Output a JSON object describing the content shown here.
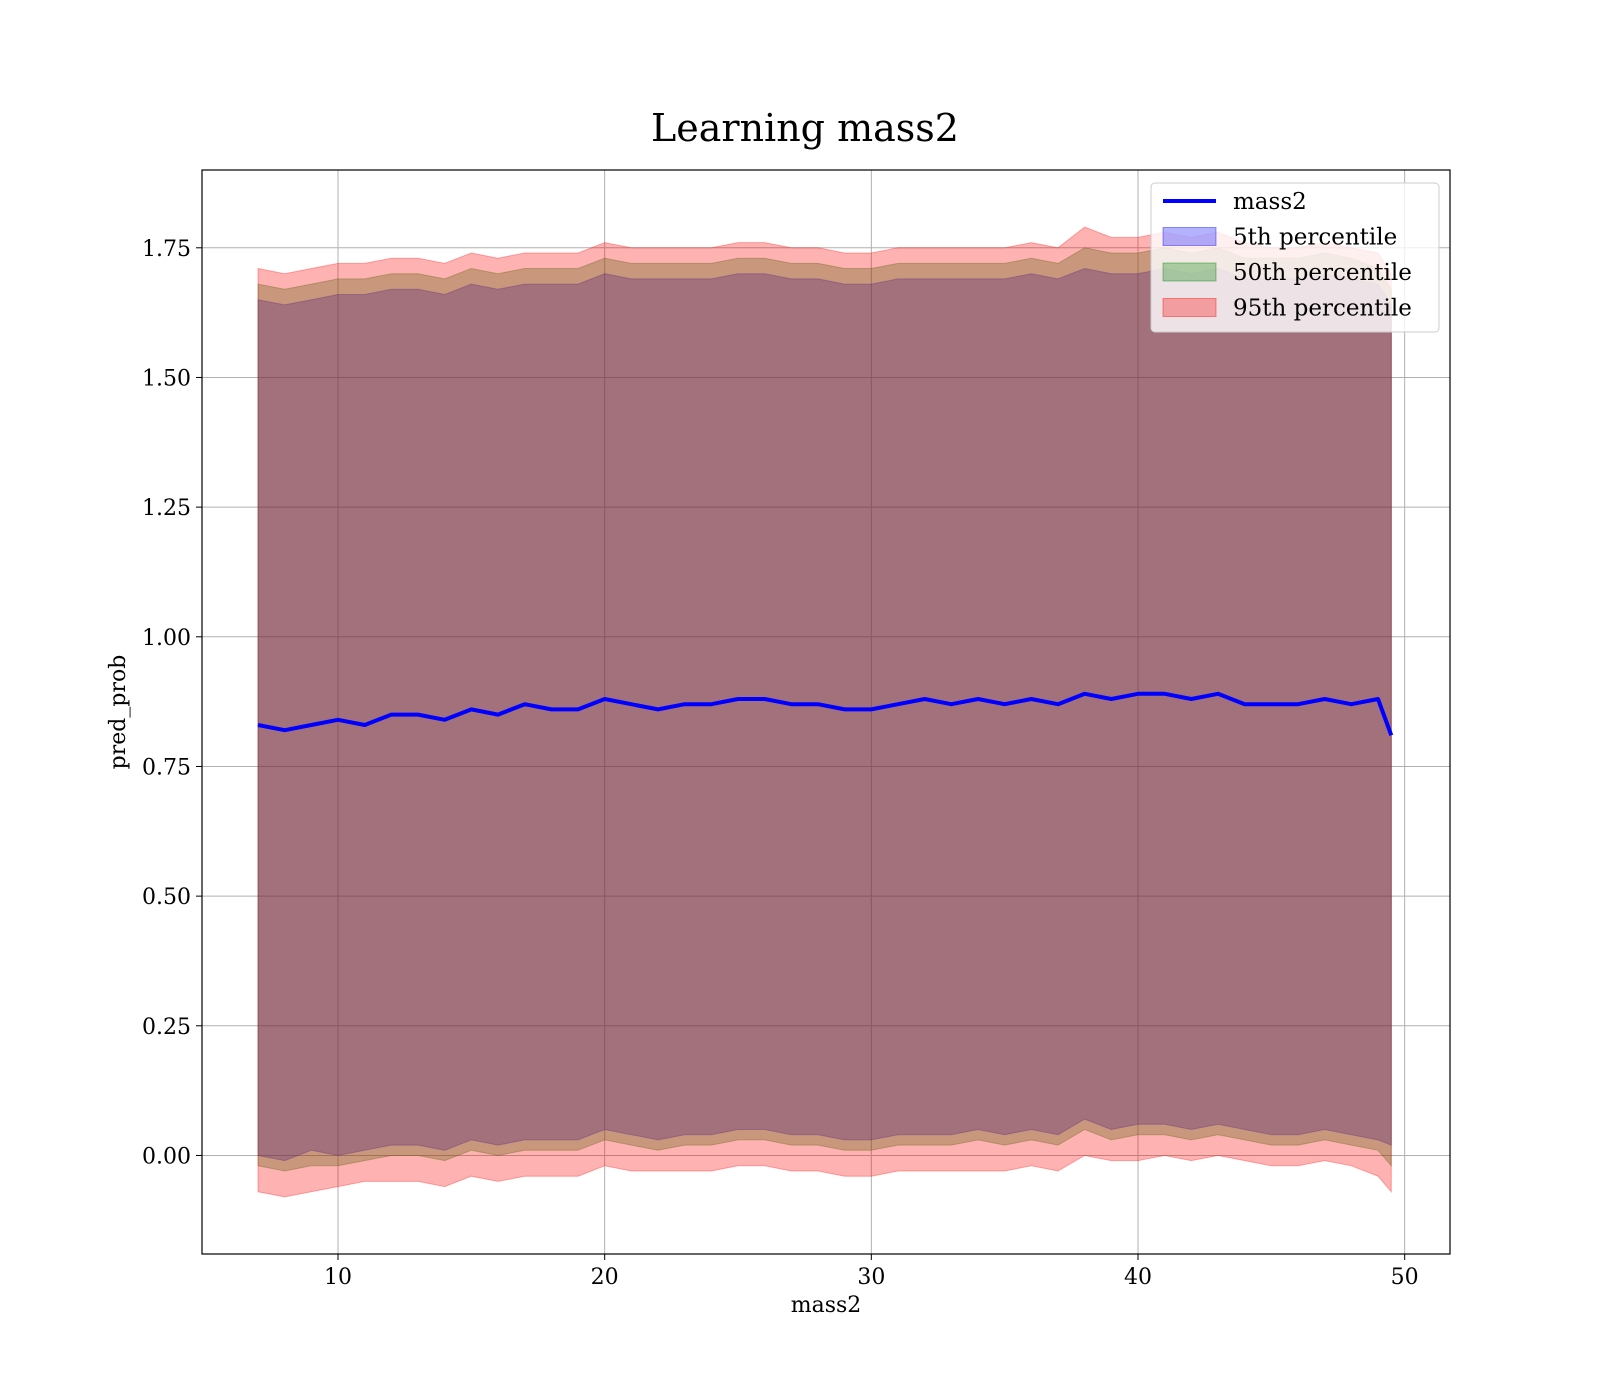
{
  "chart_data": {
    "type": "line",
    "title": "Learning mass2",
    "xlabel": "mass2",
    "ylabel": "pred_prob",
    "xlim": [
      4.9,
      51.7
    ],
    "ylim": [
      -0.19,
      1.9
    ],
    "xticks": [
      10,
      20,
      30,
      40,
      50
    ],
    "xtick_labels": [
      "10",
      "20",
      "30",
      "40",
      "50"
    ],
    "yticks": [
      0.0,
      0.25,
      0.5,
      0.75,
      1.0,
      1.25,
      1.5,
      1.75
    ],
    "ytick_labels": [
      "0.00",
      "0.25",
      "0.50",
      "0.75",
      "1.00",
      "1.25",
      "1.50",
      "1.75"
    ],
    "grid": true,
    "legend_position": "top-right",
    "colors": {
      "line": "#0000ff",
      "band_5th": "#0000ff",
      "band_50th": "#008000",
      "band_95th": "#ff0000"
    },
    "x": [
      7.0,
      8.0,
      9.0,
      10.0,
      11.0,
      12.0,
      13.0,
      14.0,
      15.0,
      16.0,
      17.0,
      18.0,
      19.0,
      20.0,
      21.0,
      22.0,
      23.0,
      24.0,
      25.0,
      26.0,
      27.0,
      28.0,
      29.0,
      30.0,
      31.0,
      32.0,
      33.0,
      34.0,
      35.0,
      36.0,
      37.0,
      38.0,
      39.0,
      40.0,
      41.0,
      42.0,
      43.0,
      44.0,
      45.0,
      46.0,
      47.0,
      48.0,
      49.0,
      49.5
    ],
    "series": [
      {
        "name": "mass2",
        "kind": "line",
        "values": [
          0.83,
          0.82,
          0.83,
          0.84,
          0.83,
          0.85,
          0.85,
          0.84,
          0.86,
          0.85,
          0.87,
          0.86,
          0.86,
          0.88,
          0.87,
          0.86,
          0.87,
          0.87,
          0.88,
          0.88,
          0.87,
          0.87,
          0.86,
          0.86,
          0.87,
          0.88,
          0.87,
          0.88,
          0.87,
          0.88,
          0.87,
          0.89,
          0.88,
          0.89,
          0.89,
          0.88,
          0.89,
          0.87,
          0.87,
          0.87,
          0.88,
          0.87,
          0.88,
          0.81
        ]
      },
      {
        "name": "5th percentile",
        "kind": "band",
        "lower": [
          0.0,
          -0.01,
          0.01,
          0.0,
          0.01,
          0.02,
          0.02,
          0.01,
          0.03,
          0.02,
          0.03,
          0.03,
          0.03,
          0.05,
          0.04,
          0.03,
          0.04,
          0.04,
          0.05,
          0.05,
          0.04,
          0.04,
          0.03,
          0.03,
          0.04,
          0.04,
          0.04,
          0.05,
          0.04,
          0.05,
          0.04,
          0.07,
          0.05,
          0.06,
          0.06,
          0.05,
          0.06,
          0.05,
          0.04,
          0.04,
          0.05,
          0.04,
          0.03,
          0.02
        ],
        "upper": [
          1.65,
          1.64,
          1.65,
          1.66,
          1.66,
          1.67,
          1.67,
          1.66,
          1.68,
          1.67,
          1.68,
          1.68,
          1.68,
          1.7,
          1.69,
          1.69,
          1.69,
          1.69,
          1.7,
          1.7,
          1.69,
          1.69,
          1.68,
          1.68,
          1.69,
          1.69,
          1.69,
          1.69,
          1.69,
          1.7,
          1.69,
          1.71,
          1.7,
          1.7,
          1.71,
          1.7,
          1.71,
          1.69,
          1.69,
          1.69,
          1.7,
          1.69,
          1.68,
          1.64
        ]
      },
      {
        "name": "50th percentile",
        "kind": "band",
        "lower": [
          -0.02,
          -0.03,
          -0.02,
          -0.02,
          -0.01,
          0.0,
          0.0,
          -0.01,
          0.01,
          0.0,
          0.01,
          0.01,
          0.01,
          0.03,
          0.02,
          0.01,
          0.02,
          0.02,
          0.03,
          0.03,
          0.02,
          0.02,
          0.01,
          0.01,
          0.02,
          0.02,
          0.02,
          0.03,
          0.02,
          0.03,
          0.02,
          0.05,
          0.03,
          0.04,
          0.04,
          0.03,
          0.04,
          0.03,
          0.02,
          0.02,
          0.03,
          0.02,
          0.01,
          -0.02
        ],
        "upper": [
          1.68,
          1.67,
          1.68,
          1.69,
          1.69,
          1.7,
          1.7,
          1.69,
          1.71,
          1.7,
          1.71,
          1.71,
          1.71,
          1.73,
          1.72,
          1.72,
          1.72,
          1.72,
          1.73,
          1.73,
          1.72,
          1.72,
          1.71,
          1.71,
          1.72,
          1.72,
          1.72,
          1.72,
          1.72,
          1.73,
          1.72,
          1.75,
          1.74,
          1.74,
          1.75,
          1.74,
          1.75,
          1.73,
          1.73,
          1.73,
          1.74,
          1.73,
          1.71,
          1.67
        ]
      },
      {
        "name": "95th percentile",
        "kind": "band",
        "lower": [
          -0.07,
          -0.08,
          -0.07,
          -0.06,
          -0.05,
          -0.05,
          -0.05,
          -0.06,
          -0.04,
          -0.05,
          -0.04,
          -0.04,
          -0.04,
          -0.02,
          -0.03,
          -0.03,
          -0.03,
          -0.03,
          -0.02,
          -0.02,
          -0.03,
          -0.03,
          -0.04,
          -0.04,
          -0.03,
          -0.03,
          -0.03,
          -0.03,
          -0.03,
          -0.02,
          -0.03,
          0.0,
          -0.01,
          -0.01,
          0.0,
          -0.01,
          0.0,
          -0.01,
          -0.02,
          -0.02,
          -0.01,
          -0.02,
          -0.04,
          -0.07
        ],
        "upper": [
          1.71,
          1.7,
          1.71,
          1.72,
          1.72,
          1.73,
          1.73,
          1.72,
          1.74,
          1.73,
          1.74,
          1.74,
          1.74,
          1.76,
          1.75,
          1.75,
          1.75,
          1.75,
          1.76,
          1.76,
          1.75,
          1.75,
          1.74,
          1.74,
          1.75,
          1.75,
          1.75,
          1.75,
          1.75,
          1.76,
          1.75,
          1.79,
          1.77,
          1.77,
          1.78,
          1.77,
          1.78,
          1.76,
          1.75,
          1.75,
          1.76,
          1.75,
          1.74,
          1.7
        ]
      }
    ]
  }
}
